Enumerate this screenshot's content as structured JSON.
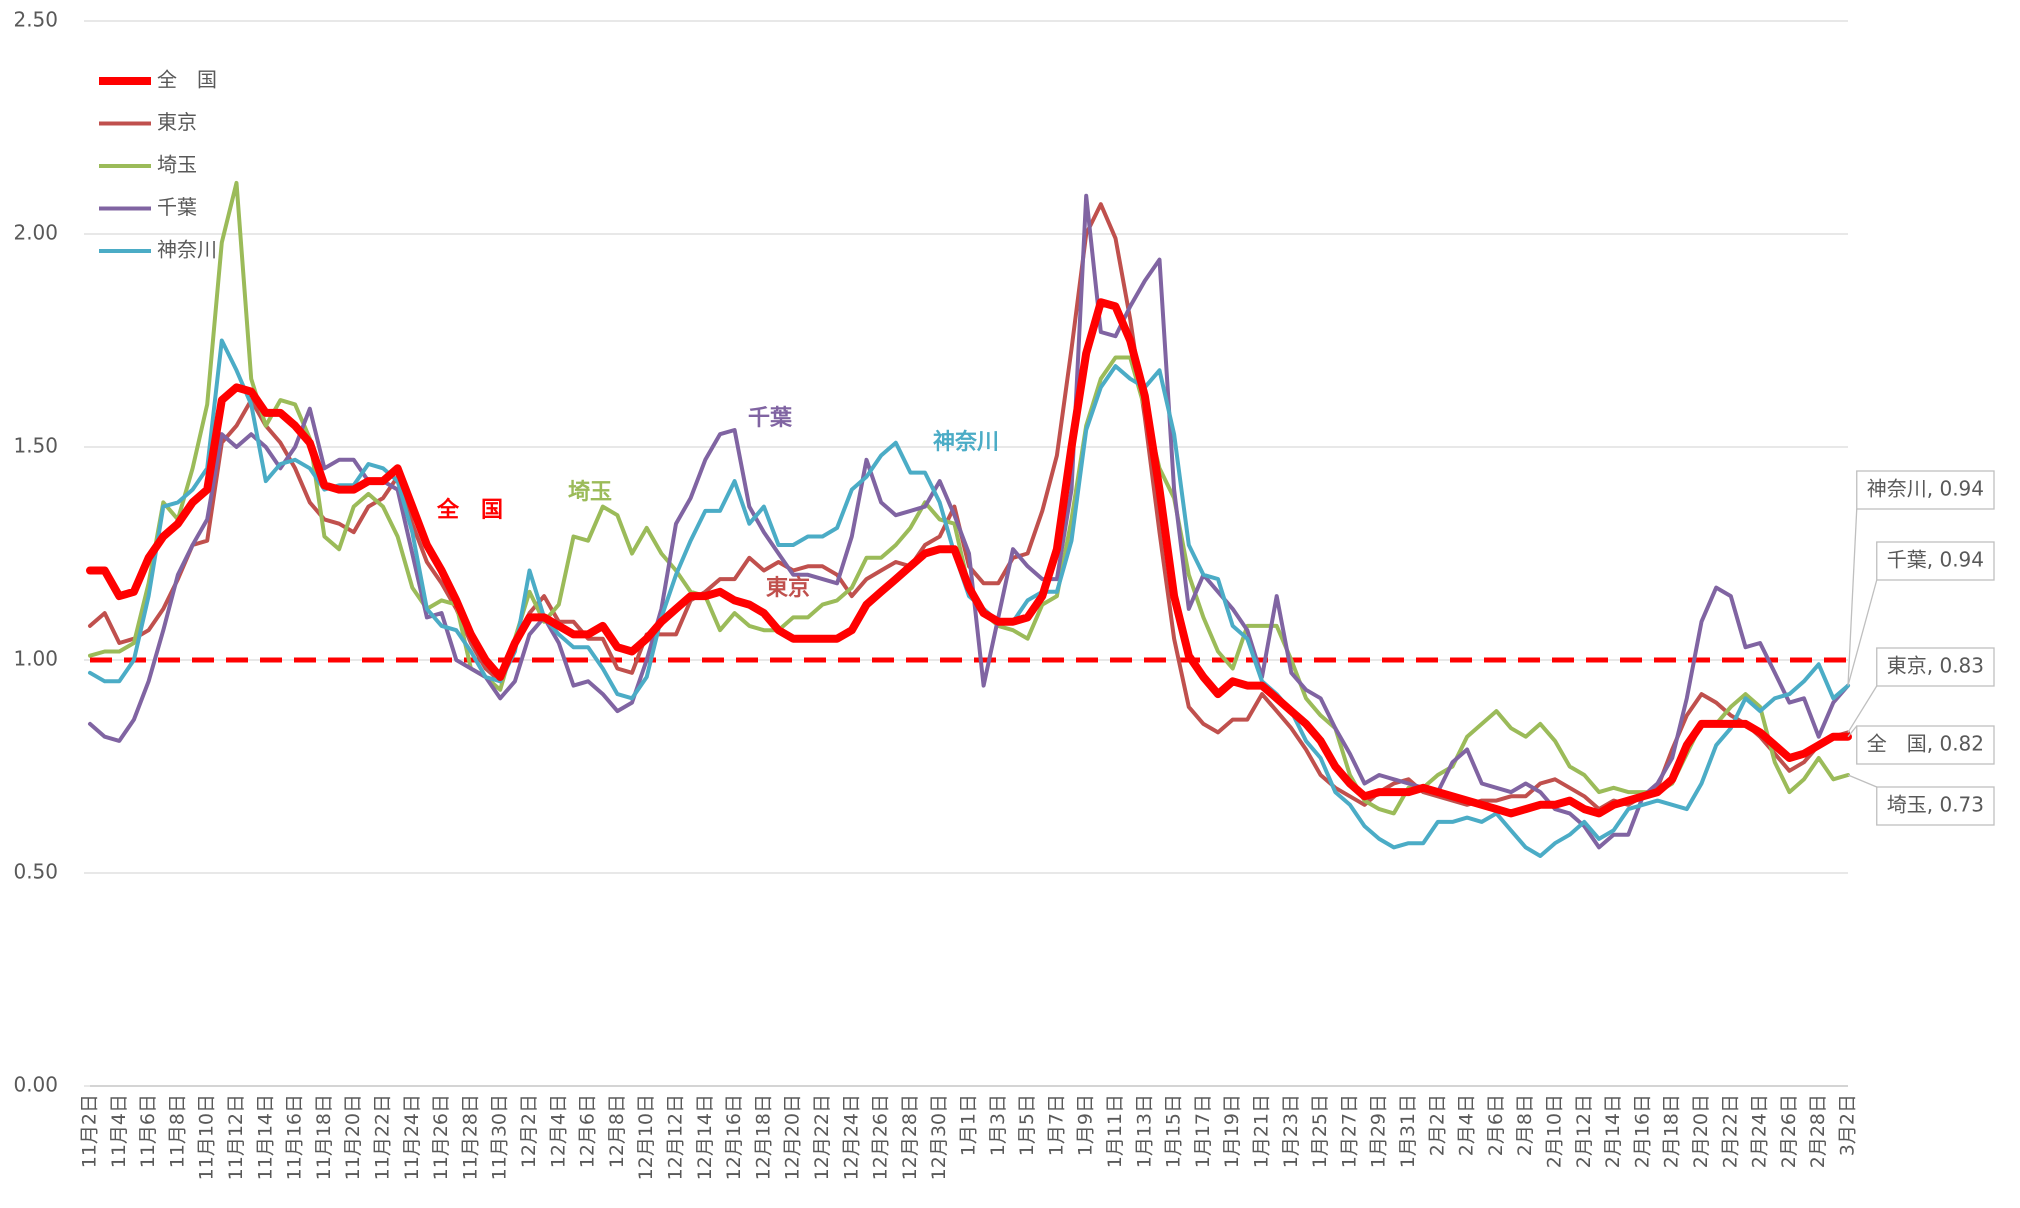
{
  "chart_data": {
    "type": "line",
    "categories": [
      "11月2日",
      null,
      "11月4日",
      null,
      "11月6日",
      null,
      "11月8日",
      null,
      "11月10日",
      null,
      "11月12日",
      null,
      "11月14日",
      null,
      "11月16日",
      null,
      "11月18日",
      null,
      "11月20日",
      null,
      "11月22日",
      null,
      "11月24日",
      null,
      "11月26日",
      null,
      "11月28日",
      null,
      "11月30日",
      null,
      "12月2日",
      null,
      "12月4日",
      null,
      "12月6日",
      null,
      "12月8日",
      null,
      "12月10日",
      null,
      "12月12日",
      null,
      "12月14日",
      null,
      "12月16日",
      null,
      "12月18日",
      null,
      "12月20日",
      null,
      "12月22日",
      null,
      "12月24日",
      null,
      "12月26日",
      null,
      "12月28日",
      null,
      "12月30日",
      null,
      "1月1日",
      null,
      "1月3日",
      null,
      "1月5日",
      null,
      "1月7日",
      null,
      "1月9日",
      null,
      "1月11日",
      null,
      "1月13日",
      null,
      "1月15日",
      null,
      "1月17日",
      null,
      "1月19日",
      null,
      "1月21日",
      null,
      "1月23日",
      null,
      "1月25日",
      null,
      "1月27日",
      null,
      "1月29日",
      null,
      "1月31日",
      null,
      "2月2日",
      null,
      "2月4日",
      null,
      "2月6日",
      null,
      "2月8日",
      null,
      "2月10日",
      null,
      "2月12日",
      null,
      "2月14日",
      null,
      "2月16日",
      null,
      "2月18日",
      null,
      "2月20日",
      null,
      "2月22日",
      null,
      "2月24日",
      null,
      "2月26日",
      null,
      "2月28日",
      null,
      "3月2日"
    ],
    "series": [
      {
        "name": "全　国",
        "color": "#ff0000",
        "width": 8,
        "end_label": "全　国, 0.82",
        "values": [
          1.21,
          1.21,
          1.15,
          1.16,
          1.24,
          1.29,
          1.32,
          1.37,
          1.4,
          1.61,
          1.64,
          1.63,
          1.58,
          1.58,
          1.55,
          1.51,
          1.41,
          1.4,
          1.4,
          1.42,
          1.42,
          1.45,
          1.36,
          1.27,
          1.21,
          1.14,
          1.06,
          1.0,
          0.96,
          1.04,
          1.1,
          1.1,
          1.08,
          1.06,
          1.06,
          1.08,
          1.03,
          1.02,
          1.05,
          1.09,
          1.12,
          1.15,
          1.15,
          1.16,
          1.14,
          1.13,
          1.11,
          1.07,
          1.05,
          1.05,
          1.05,
          1.05,
          1.07,
          1.13,
          1.16,
          1.19,
          1.22,
          1.25,
          1.26,
          1.26,
          1.17,
          1.11,
          1.09,
          1.09,
          1.1,
          1.15,
          1.26,
          1.5,
          1.72,
          1.84,
          1.83,
          1.75,
          1.62,
          1.4,
          1.15,
          1.01,
          0.96,
          0.92,
          0.95,
          0.94,
          0.94,
          0.91,
          0.88,
          0.85,
          0.81,
          0.75,
          0.71,
          0.68,
          0.69,
          0.69,
          0.69,
          0.7,
          0.69,
          0.68,
          0.67,
          0.66,
          0.65,
          0.64,
          0.65,
          0.66,
          0.66,
          0.67,
          0.65,
          0.64,
          0.66,
          0.67,
          0.68,
          0.69,
          0.72,
          0.8,
          0.85,
          0.85,
          0.85,
          0.85,
          0.83,
          0.8,
          0.77,
          0.78,
          0.8,
          0.82,
          0.82
        ]
      },
      {
        "name": "東京",
        "color": "#c0504d",
        "width": 4,
        "end_label": "東京, 0.83",
        "values": [
          1.08,
          1.11,
          1.04,
          1.05,
          1.07,
          1.12,
          1.19,
          1.27,
          1.28,
          1.51,
          1.55,
          1.61,
          1.55,
          1.51,
          1.45,
          1.37,
          1.33,
          1.32,
          1.3,
          1.36,
          1.38,
          1.43,
          1.32,
          1.23,
          1.18,
          1.12,
          1.04,
          0.98,
          0.95,
          1.04,
          1.11,
          1.15,
          1.09,
          1.09,
          1.05,
          1.05,
          0.98,
          0.97,
          1.06,
          1.06,
          1.06,
          1.14,
          1.16,
          1.19,
          1.19,
          1.24,
          1.21,
          1.23,
          1.21,
          1.22,
          1.22,
          1.2,
          1.15,
          1.19,
          1.21,
          1.23,
          1.22,
          1.27,
          1.29,
          1.36,
          1.22,
          1.18,
          1.18,
          1.24,
          1.25,
          1.35,
          1.48,
          1.73,
          2.0,
          2.07,
          1.99,
          1.8,
          1.57,
          1.3,
          1.05,
          0.89,
          0.85,
          0.83,
          0.86,
          0.86,
          0.92,
          0.88,
          0.84,
          0.79,
          0.73,
          0.7,
          0.68,
          0.66,
          0.69,
          0.71,
          0.72,
          0.69,
          0.68,
          0.67,
          0.66,
          0.67,
          0.67,
          0.68,
          0.68,
          0.71,
          0.72,
          0.7,
          0.68,
          0.65,
          0.67,
          0.66,
          0.68,
          0.7,
          0.79,
          0.87,
          0.92,
          0.9,
          0.87,
          0.85,
          0.82,
          0.78,
          0.74,
          0.76,
          0.8,
          0.82,
          0.83
        ]
      },
      {
        "name": "埼玉",
        "color": "#9bbb59",
        "width": 4,
        "end_label": "埼玉, 0.73",
        "values": [
          1.01,
          1.02,
          1.02,
          1.04,
          1.18,
          1.37,
          1.33,
          1.45,
          1.6,
          1.98,
          2.12,
          1.66,
          1.55,
          1.61,
          1.6,
          1.52,
          1.29,
          1.26,
          1.36,
          1.39,
          1.36,
          1.29,
          1.17,
          1.12,
          1.14,
          1.13,
          0.98,
          0.96,
          0.93,
          1.05,
          1.16,
          1.09,
          1.13,
          1.29,
          1.28,
          1.36,
          1.34,
          1.25,
          1.31,
          1.25,
          1.21,
          1.16,
          1.15,
          1.07,
          1.11,
          1.08,
          1.07,
          1.07,
          1.1,
          1.1,
          1.13,
          1.14,
          1.17,
          1.24,
          1.24,
          1.27,
          1.31,
          1.37,
          1.33,
          1.32,
          1.17,
          1.11,
          1.08,
          1.07,
          1.05,
          1.13,
          1.15,
          1.33,
          1.55,
          1.66,
          1.71,
          1.71,
          1.59,
          1.45,
          1.38,
          1.2,
          1.1,
          1.02,
          0.98,
          1.08,
          1.08,
          1.08,
          1.0,
          0.91,
          0.87,
          0.84,
          0.73,
          0.67,
          0.65,
          0.64,
          0.7,
          0.7,
          0.73,
          0.75,
          0.82,
          0.85,
          0.88,
          0.84,
          0.82,
          0.85,
          0.81,
          0.75,
          0.73,
          0.69,
          0.7,
          0.69,
          0.69,
          0.69,
          0.71,
          0.78,
          0.85,
          0.85,
          0.89,
          0.92,
          0.89,
          0.76,
          0.69,
          0.72,
          0.77,
          0.72,
          0.73
        ]
      },
      {
        "name": "千葉",
        "color": "#8064a2",
        "width": 4,
        "end_label": "千葉, 0.94",
        "values": [
          0.85,
          0.82,
          0.81,
          0.86,
          0.95,
          1.07,
          1.2,
          1.27,
          1.33,
          1.53,
          1.5,
          1.53,
          1.5,
          1.45,
          1.5,
          1.59,
          1.45,
          1.47,
          1.47,
          1.42,
          1.42,
          1.4,
          1.25,
          1.1,
          1.11,
          1.0,
          0.98,
          0.96,
          0.91,
          0.95,
          1.06,
          1.1,
          1.04,
          0.94,
          0.95,
          0.92,
          0.88,
          0.9,
          1.0,
          1.12,
          1.32,
          1.38,
          1.47,
          1.53,
          1.54,
          1.36,
          1.3,
          1.25,
          1.2,
          1.2,
          1.19,
          1.18,
          1.29,
          1.47,
          1.37,
          1.34,
          1.35,
          1.36,
          1.42,
          1.34,
          1.25,
          0.94,
          1.1,
          1.26,
          1.22,
          1.19,
          1.19,
          1.4,
          2.09,
          1.77,
          1.76,
          1.83,
          1.89,
          1.94,
          1.4,
          1.12,
          1.2,
          1.16,
          1.12,
          1.07,
          0.96,
          1.15,
          0.97,
          0.93,
          0.91,
          0.84,
          0.78,
          0.71,
          0.73,
          0.72,
          0.71,
          0.7,
          0.69,
          0.76,
          0.79,
          0.71,
          0.7,
          0.69,
          0.71,
          0.69,
          0.65,
          0.64,
          0.61,
          0.56,
          0.59,
          0.59,
          0.68,
          0.71,
          0.77,
          0.91,
          1.09,
          1.17,
          1.15,
          1.03,
          1.04,
          0.97,
          0.9,
          0.91,
          0.82,
          0.9,
          0.94
        ]
      },
      {
        "name": "神奈川",
        "color": "#4bacc6",
        "width": 4,
        "end_label": "神奈川, 0.94",
        "values": [
          0.97,
          0.95,
          0.95,
          1.0,
          1.15,
          1.36,
          1.37,
          1.4,
          1.45,
          1.75,
          1.68,
          1.6,
          1.42,
          1.46,
          1.47,
          1.45,
          1.4,
          1.41,
          1.41,
          1.46,
          1.45,
          1.42,
          1.3,
          1.12,
          1.08,
          1.07,
          1.02,
          0.96,
          0.95,
          1.02,
          1.21,
          1.1,
          1.06,
          1.03,
          1.03,
          0.98,
          0.92,
          0.91,
          0.96,
          1.1,
          1.2,
          1.28,
          1.35,
          1.35,
          1.42,
          1.32,
          1.36,
          1.27,
          1.27,
          1.29,
          1.29,
          1.31,
          1.4,
          1.43,
          1.48,
          1.51,
          1.44,
          1.44,
          1.37,
          1.25,
          1.15,
          1.12,
          1.09,
          1.09,
          1.14,
          1.16,
          1.16,
          1.28,
          1.54,
          1.64,
          1.69,
          1.66,
          1.64,
          1.68,
          1.53,
          1.27,
          1.2,
          1.19,
          1.08,
          1.05,
          0.95,
          0.92,
          0.88,
          0.81,
          0.77,
          0.69,
          0.66,
          0.61,
          0.58,
          0.56,
          0.57,
          0.57,
          0.62,
          0.62,
          0.63,
          0.62,
          0.64,
          0.6,
          0.56,
          0.54,
          0.57,
          0.59,
          0.62,
          0.58,
          0.6,
          0.65,
          0.66,
          0.67,
          0.66,
          0.65,
          0.71,
          0.8,
          0.84,
          0.91,
          0.88,
          0.91,
          0.92,
          0.95,
          0.99,
          0.91,
          0.94
        ]
      }
    ],
    "ylim": [
      0,
      2.5
    ],
    "yticks": [
      {
        "value": 0,
        "label": "0.00"
      },
      {
        "value": 0.5,
        "label": "0.50"
      },
      {
        "value": 1,
        "label": "1.00"
      },
      {
        "value": 1.5,
        "label": "1.50"
      },
      {
        "value": 2,
        "label": "2.00"
      },
      {
        "value": 2.5,
        "label": "2.50"
      }
    ],
    "grid": true,
    "reference_line": {
      "value": 1,
      "color": "#ff0000"
    },
    "legend": "top-left"
  }
}
